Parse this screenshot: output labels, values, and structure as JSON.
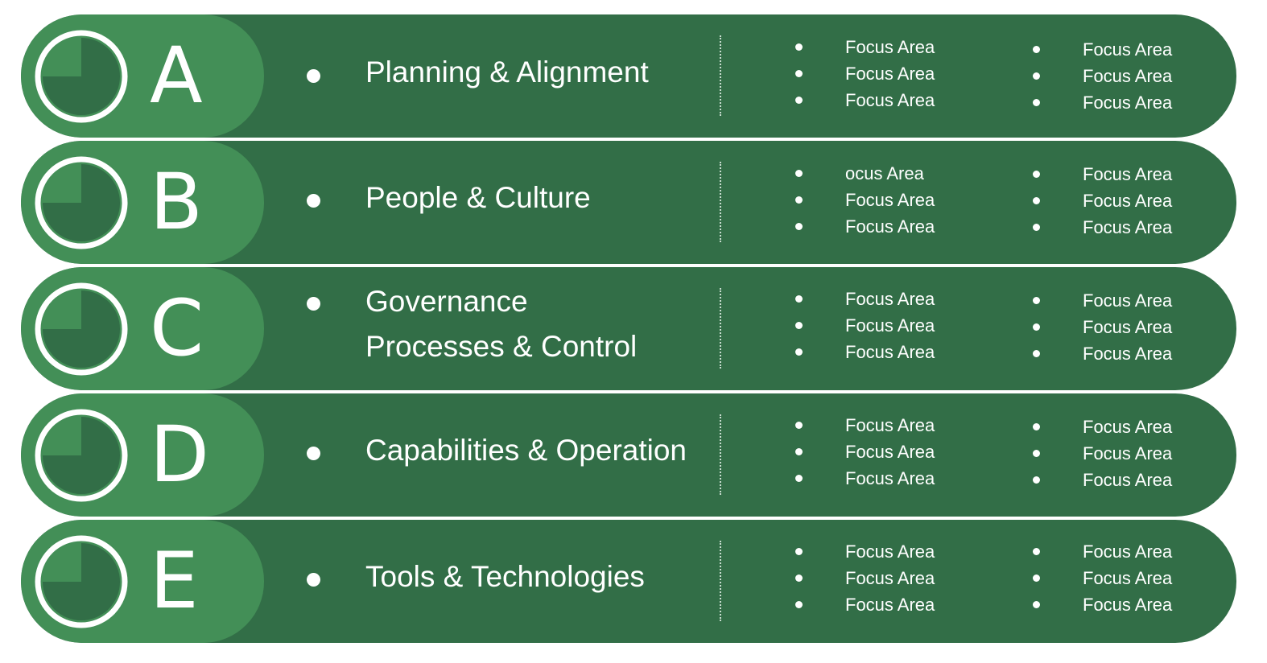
{
  "colors": {
    "background": "#ffffff",
    "band": "#326e47",
    "cap": "#438f57",
    "text": "#ffffff"
  },
  "rows": [
    {
      "letter": "A",
      "title_lines": [
        "Planning & Alignment"
      ],
      "focus_col1": [
        "Focus Area",
        "Focus Area",
        "Focus Area"
      ],
      "focus_col2": [
        "Focus Area",
        "Focus Area",
        "Focus Area"
      ]
    },
    {
      "letter": "B",
      "title_lines": [
        "People & Culture"
      ],
      "focus_col1": [
        "ocus Area",
        "Focus Area",
        "Focus Area"
      ],
      "focus_col2": [
        "Focus Area",
        "Focus Area",
        "Focus Area"
      ]
    },
    {
      "letter": "C",
      "title_lines": [
        "Governance",
        "Processes & Control"
      ],
      "focus_col1": [
        "Focus Area",
        "Focus Area",
        "Focus Area"
      ],
      "focus_col2": [
        "Focus Area",
        "Focus Area",
        "Focus Area"
      ]
    },
    {
      "letter": "D",
      "title_lines": [
        "Capabilities & Operation"
      ],
      "focus_col1": [
        "Focus Area",
        "Focus Area",
        "Focus Area"
      ],
      "focus_col2": [
        "Focus Area",
        "Focus Area",
        "Focus Area"
      ]
    },
    {
      "letter": "E",
      "title_lines": [
        "Tools & Technologies"
      ],
      "focus_col1": [
        "Focus Area",
        "Focus Area",
        "Focus Area"
      ],
      "focus_col2": [
        "Focus Area",
        "Focus Area",
        "Focus Area"
      ]
    }
  ]
}
